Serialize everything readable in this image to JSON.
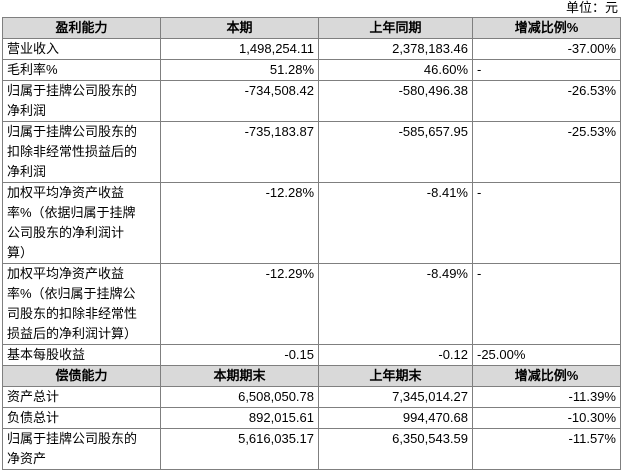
{
  "unit": "单位：元",
  "table": {
    "header": [
      "盈利能力",
      "本期",
      "上年同期",
      "增减比例%"
    ],
    "rows": [
      [
        [
          "营业收入"
        ],
        "1,498,254.11",
        "2,378,183.46",
        "-37.00%"
      ],
      [
        [
          "毛利率%"
        ],
        "51.28%",
        "46.60%",
        "-"
      ],
      [
        [
          "归属于挂牌公司股东的",
          "净利润"
        ],
        "-734,508.42",
        "-580,496.38",
        "-26.53%"
      ],
      [
        [
          "归属于挂牌公司股东的",
          "扣除非经常性损益后的",
          "净利润"
        ],
        "-735,183.87",
        "-585,657.95",
        "-25.53%"
      ],
      [
        [
          "加权平均净资产收益",
          "率%（依据归属于挂牌",
          "公司股东的净利润计",
          "算）"
        ],
        "-12.28%",
        "-8.41%",
        "-"
      ],
      [
        [
          "加权平均净资产收益",
          "率%（依归属于挂牌公",
          "司股东的扣除非经常性",
          "损益后的净利润计算）"
        ],
        "-12.29%",
        "-8.49%",
        "-"
      ],
      [
        [
          "基本每股收益"
        ],
        "-0.15",
        "-0.12",
        "-25.00%"
      ]
    ],
    "header2": [
      "偿债能力",
      "本期期末",
      "上年期末",
      "增减比例%"
    ],
    "rows2": [
      [
        [
          "资产总计"
        ],
        "6,508,050.78",
        "7,345,014.27",
        "-11.39%"
      ],
      [
        [
          "负债总计"
        ],
        "892,015.61",
        "994,470.68",
        "-10.30%"
      ],
      [
        [
          "归属于挂牌公司股东的",
          "净资产"
        ],
        "5,616,035.17",
        "6,350,543.59",
        "-11.57%"
      ]
    ]
  }
}
